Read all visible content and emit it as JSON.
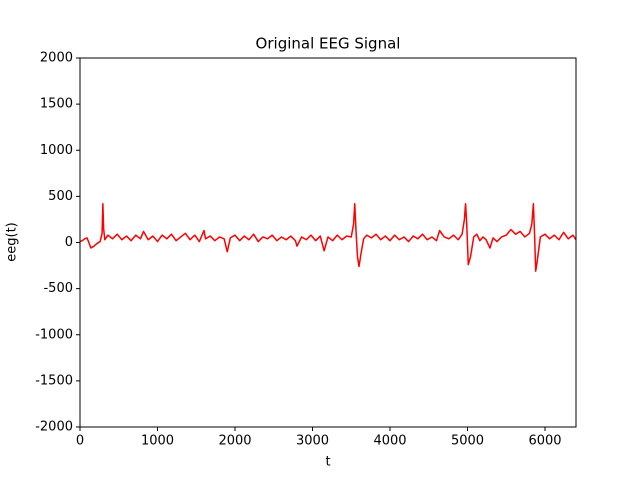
{
  "chart_data": {
    "type": "line",
    "title": "Original EEG Signal",
    "x_label": "t",
    "y_label": "eeg(t)",
    "x": [
      0,
      30,
      60,
      90,
      110,
      140,
      180,
      220,
      260,
      285,
      295,
      305,
      320,
      360,
      420,
      480,
      540,
      600,
      660,
      720,
      780,
      820,
      880,
      940,
      1000,
      1060,
      1120,
      1180,
      1240,
      1300,
      1360,
      1420,
      1480,
      1540,
      1600,
      1620,
      1680,
      1740,
      1800,
      1860,
      1900,
      1940,
      2000,
      2060,
      2120,
      2180,
      2240,
      2300,
      2360,
      2420,
      2480,
      2540,
      2600,
      2660,
      2720,
      2780,
      2800,
      2860,
      2920,
      2980,
      3040,
      3100,
      3150,
      3200,
      3260,
      3320,
      3380,
      3440,
      3500,
      3530,
      3545,
      3560,
      3580,
      3600,
      3630,
      3660,
      3700,
      3760,
      3820,
      3880,
      3940,
      4000,
      4060,
      4120,
      4180,
      4240,
      4300,
      4360,
      4420,
      4480,
      4540,
      4600,
      4640,
      4700,
      4760,
      4820,
      4880,
      4930,
      4960,
      4975,
      4990,
      5010,
      5040,
      5080,
      5120,
      5160,
      5200,
      5240,
      5290,
      5330,
      5380,
      5440,
      5500,
      5560,
      5620,
      5680,
      5740,
      5800,
      5830,
      5850,
      5865,
      5880,
      5900,
      5940,
      6000,
      6060,
      6120,
      6180,
      6240,
      6300,
      6360,
      6400
    ],
    "values": [
      10,
      20,
      40,
      50,
      10,
      -60,
      -40,
      -10,
      10,
      100,
      420,
      150,
      30,
      80,
      40,
      90,
      30,
      70,
      20,
      80,
      40,
      120,
      30,
      70,
      10,
      80,
      40,
      90,
      20,
      60,
      100,
      30,
      80,
      10,
      130,
      40,
      70,
      20,
      60,
      40,
      -100,
      50,
      80,
      20,
      70,
      30,
      90,
      10,
      60,
      40,
      80,
      20,
      60,
      30,
      70,
      20,
      -40,
      60,
      30,
      80,
      20,
      70,
      -90,
      60,
      20,
      80,
      30,
      70,
      60,
      200,
      420,
      150,
      -150,
      -260,
      -100,
      40,
      80,
      50,
      90,
      30,
      70,
      20,
      80,
      30,
      60,
      10,
      70,
      40,
      90,
      30,
      60,
      20,
      130,
      60,
      40,
      80,
      30,
      90,
      250,
      420,
      200,
      -240,
      -150,
      60,
      90,
      20,
      60,
      30,
      -60,
      50,
      10,
      60,
      80,
      140,
      90,
      120,
      60,
      100,
      200,
      420,
      100,
      -310,
      -200,
      60,
      90,
      40,
      80,
      30,
      110,
      40,
      80,
      30
    ],
    "color": "#ff0000",
    "xlim": [
      0,
      6400
    ],
    "xticks": [
      0,
      1000,
      2000,
      3000,
      4000,
      5000,
      6000
    ],
    "ylim": [
      -2000,
      2000
    ],
    "yticks": [
      -2000,
      -1500,
      -1000,
      -500,
      0,
      500,
      1000,
      1500,
      2000
    ]
  }
}
